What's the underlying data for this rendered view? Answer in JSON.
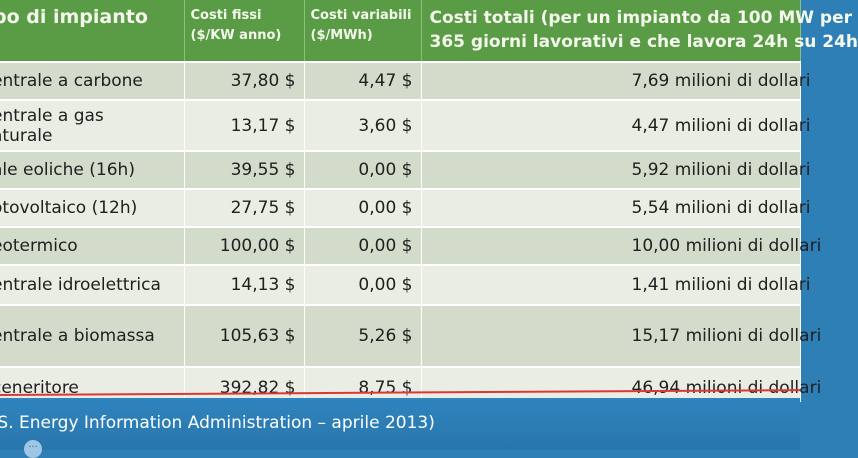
{
  "table": {
    "headers": [
      {
        "line1": "po di impianto",
        "line2": ""
      },
      {
        "line1": "Costi fissi",
        "line2": "($/KW anno)"
      },
      {
        "line1": "Costi variabili",
        "line2": "($/MWh)"
      },
      {
        "line1": "Costi totali (per  un impianto da 100 MW per",
        "line2": "365 giorni lavorativi e che lavora 24h su 24h"
      }
    ],
    "rows": [
      {
        "name": "entrale a carbone",
        "name2": "",
        "fixed": "37,80 $",
        "variable": "4,47 $",
        "total": "7,69 milioni di dollari"
      },
      {
        "name": "entrale a gas",
        "name2": "aturale",
        "fixed": "13,17 $",
        "variable": "3,60 $",
        "total": "4,47 milioni di dollari"
      },
      {
        "name": "ale eoliche (16h)",
        "name2": "",
        "fixed": "39,55 $",
        "variable": "0,00 $",
        "total": "5,92 milioni di dollari"
      },
      {
        "name": "otovoltaico (12h)",
        "name2": "",
        "fixed": "27,75 $",
        "variable": "0,00 $",
        "total": "5,54 milioni di dollari"
      },
      {
        "name": "eotermico",
        "name2": "",
        "fixed": "100,00 $",
        "variable": "0,00 $",
        "total": "10,00 milioni di dollari"
      },
      {
        "name": "entrale idroelettrica",
        "name2": "",
        "fixed": "14,13 $",
        "variable": "0,00 $",
        "total": "1,41 milioni di dollari"
      },
      {
        "name": "entrale a biomassa",
        "name2": "",
        "fixed": "105,63 $",
        "variable": "5,26 $",
        "total": "15,17 milioni di dollari"
      },
      {
        "name": "ceneritore",
        "name2": "",
        "fixed": "392,82 $",
        "variable": "8,75 $",
        "total": "46,94 milioni di dollari"
      }
    ]
  },
  "footer": {
    "source": ".S. Energy Information Administration – aprile 2013)",
    "more_label": "..."
  },
  "colors": {
    "header_bg": "#5a9b45",
    "row_odd": "#d3dccb",
    "row_even": "#e9ede3",
    "footer_bg": "#2e7fb6",
    "underline": "#d83a3a"
  }
}
